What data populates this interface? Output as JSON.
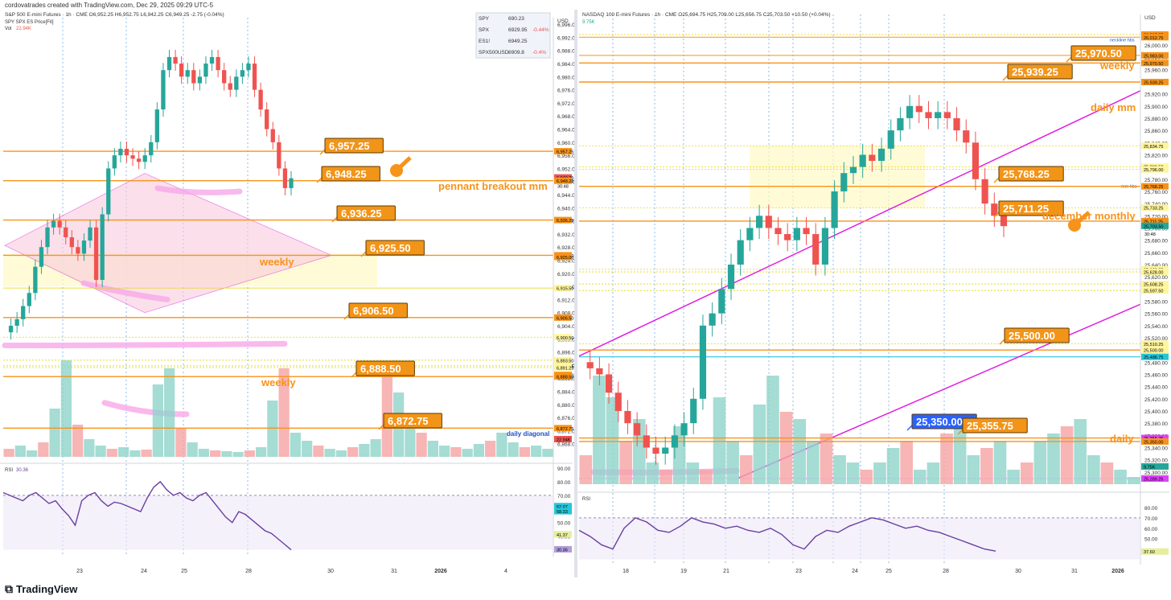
{
  "page": {
    "header": "cordovatrades created with TradingView.com, Dec 29, 2025 09:29 UTC-5",
    "brand": "TradingView"
  },
  "colors": {
    "up": "#26a69a",
    "down": "#ef5350",
    "orange": "#f7931a",
    "magenta": "#e020e0",
    "pink": "#f8a8e8",
    "rsi": "#6a3ea1",
    "label_bg": "#f29418",
    "label_border": "#5b3a00"
  },
  "chart_data": [
    {
      "type": "line",
      "panel": "left",
      "title": "S&P 500 E-mini Futures · 1h · CME",
      "ohlc_header": "O6,952.25  H6,952.75  L6,942.25  C6,949.25  -2.75 (-0.04%)",
      "subtitle": "SPY SPX ES Price[Fit]",
      "vol_label": "Vol",
      "vol_value": "22.94K",
      "currency": "USD",
      "ylim": [
        6864,
        6998
      ],
      "y_ticks": [
        6996,
        6992,
        6988,
        6984,
        6980,
        6976,
        6972,
        6968,
        6964,
        6960,
        6956,
        6952,
        6948,
        6944,
        6940,
        6936,
        6932,
        6928,
        6924,
        6920,
        6916,
        6912,
        6908,
        6904,
        6900,
        6896,
        6892,
        6888,
        6884,
        6880,
        6876,
        6872,
        6868
      ],
      "x_ticks": [
        "23",
        "24",
        "25",
        "28",
        "30",
        "31",
        "2026",
        "4"
      ],
      "close_series": [
        6902,
        6904,
        6906,
        6910,
        6914,
        6922,
        6928,
        6934,
        6936,
        6934,
        6931,
        6928,
        6926,
        6930,
        6934,
        6918,
        6938,
        6952,
        6956,
        6958,
        6956,
        6955,
        6954,
        6956,
        6960,
        6970,
        6982,
        6986,
        6984,
        6980,
        6982,
        6978,
        6980,
        6984,
        6986,
        6982,
        6978,
        6976,
        6980,
        6982,
        6984,
        6976,
        6970,
        6964,
        6960,
        6952,
        6946,
        6949
      ],
      "horizontal_levels": [
        {
          "price": "6,957.25",
          "note": ""
        },
        {
          "price": "6,948.25",
          "note": "pennant breakout mm"
        },
        {
          "price": "6,936.25",
          "note": ""
        },
        {
          "price": "6,925.50",
          "note": "weekly"
        },
        {
          "price": "6,906.50",
          "note": ""
        },
        {
          "price": "6,888.50",
          "note": "weekly"
        },
        {
          "price": "6,872.75",
          "note": "daily diagonal"
        }
      ],
      "axis_tags": [
        "6,957.25",
        "6,949.25",
        "6,948.25",
        "6,936.25",
        "6,925.50",
        "6,925.00",
        "6,915.50",
        "6,906.50",
        "6,900.50",
        "6,893.50",
        "6,891.75",
        "6,891.25",
        "6,889.00",
        "6,888.50",
        "6,872.75",
        "22.94K"
      ],
      "countdown": "30:48",
      "watchlist": [
        {
          "symbol": "SPY",
          "last": "690.23",
          "chg": ""
        },
        {
          "symbol": "SPX",
          "last": "6929.95",
          "chg": "-0.44%"
        },
        {
          "symbol": "ES1!",
          "last": "6949.25",
          "chg": ""
        },
        {
          "symbol": "SPX500USD",
          "last": "6909.8",
          "chg": "-0.4%"
        }
      ],
      "rsi": {
        "label": "RSI",
        "value": "30.36",
        "ticks": [
          "90.00",
          "80.00",
          "70.00",
          "60.00",
          "50.00",
          "40.00"
        ],
        "tags": [
          "62.07",
          "58.33",
          "41.37",
          "30.36"
        ],
        "series": [
          72,
          70,
          68,
          66,
          70,
          72,
          68,
          64,
          66,
          60,
          55,
          48,
          66,
          70,
          72,
          66,
          62,
          65,
          64,
          62,
          60,
          58,
          68,
          76,
          80,
          74,
          70,
          72,
          68,
          66,
          70,
          72,
          66,
          60,
          54,
          50,
          58,
          56,
          52,
          48,
          44,
          42,
          38,
          34,
          30
        ]
      }
    },
    {
      "type": "line",
      "panel": "right",
      "title": "NASDAQ 100 E-mini Futures · 1h · CME",
      "ohlc_header": "O25,694.75  H25,709.00  L25,656.75  C25,703.50  +10.50 (+0.04%)",
      "vol_value": "9.75K",
      "currency": "USD",
      "ylim": [
        25280,
        26050
      ],
      "y_ticks": [
        26020,
        26000,
        25980,
        25960,
        25940,
        25920,
        25900,
        25880,
        25860,
        25840,
        25820,
        25800,
        25780,
        25760,
        25740,
        25720,
        25700,
        25680,
        25660,
        25640,
        25620,
        25600,
        25580,
        25560,
        25540,
        25520,
        25500,
        25480,
        25460,
        25440,
        25420,
        25400,
        25380,
        25360,
        25340,
        25320,
        25300
      ],
      "x_ticks": [
        "18",
        "19",
        "21",
        "23",
        "24",
        "25",
        "28",
        "30",
        "31",
        "2026"
      ],
      "close_series": [
        25480,
        25470,
        25460,
        25430,
        25400,
        25380,
        25360,
        25340,
        25330,
        25340,
        25360,
        25380,
        25420,
        25540,
        25560,
        25600,
        25640,
        25680,
        25700,
        25720,
        25700,
        25690,
        25680,
        25700,
        25690,
        25640,
        25700,
        25760,
        25790,
        25800,
        25820,
        25810,
        25830,
        25860,
        25880,
        25900,
        25890,
        25880,
        25890,
        25880,
        25860,
        25840,
        25780,
        25740,
        25720,
        25703
      ],
      "horizontal_levels": [
        {
          "price": "25,970.50",
          "note": "weekly"
        },
        {
          "price": "25,939.25",
          "note": "daily mm"
        },
        {
          "price": "25,768.25",
          "note": ""
        },
        {
          "price": "25,711.25",
          "note": "december monthly"
        },
        {
          "price": "25,500.00",
          "note": ""
        },
        {
          "price": "25,350.00",
          "note": "daily"
        },
        {
          "price": "25,355.75",
          "note": ""
        }
      ],
      "small_notes": [
        "neckline hbs",
        "mm hbs"
      ],
      "axis_tags": [
        "26,017.25",
        "26,012.75",
        "25,983.00",
        "25,970.50",
        "25,939.25",
        "25,834.75",
        "25,800.50",
        "25,796.00",
        "25,768.25",
        "25,733.25",
        "25,711.25",
        "25,703.50",
        "25,632.25",
        "25,628.00",
        "25,608.25",
        "25,597.50",
        "25,510.25",
        "25,500.00",
        "25,488.75",
        "25,355.75",
        "25,350.00",
        "9.75K",
        "25,289.25"
      ],
      "countdown": "30:48",
      "rsi": {
        "label": "RSI",
        "ticks": [
          "80.00",
          "70.00",
          "60.00",
          "50.00"
        ],
        "tags": [
          "37.60"
        ],
        "series": [
          58,
          52,
          44,
          40,
          60,
          70,
          66,
          58,
          56,
          62,
          70,
          66,
          64,
          60,
          62,
          58,
          56,
          60,
          54,
          44,
          40,
          52,
          58,
          56,
          62,
          66,
          70,
          68,
          64,
          60,
          62,
          58,
          56,
          52,
          48,
          44,
          40,
          38
        ]
      }
    }
  ]
}
